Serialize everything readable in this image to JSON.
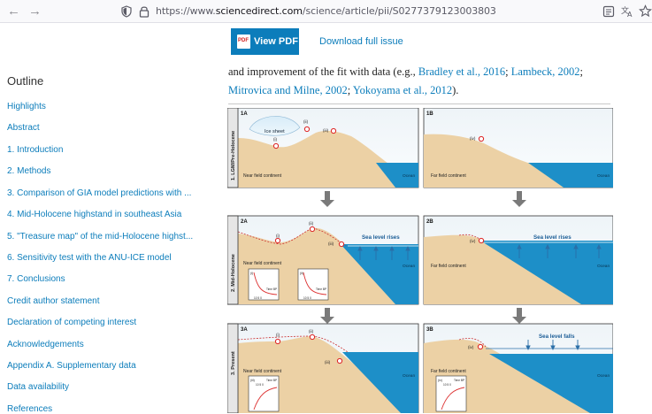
{
  "browser": {
    "url_prefix": "https://www.",
    "url_host": "sciencedirect.com",
    "url_path": "/science/article/pii/S0277379123003803"
  },
  "toolbar": {
    "view_pdf": "View PDF",
    "download": "Download full issue"
  },
  "outline": {
    "title": "Outline",
    "items": [
      "Highlights",
      "Abstract",
      "1. Introduction",
      "2. Methods",
      "3. Comparison of GIA model predictions with ...",
      "4. Mid-Holocene highstand in southeast Asia",
      "5. \"Treasure map\" of the mid-Holocene highst...",
      "6. Sensitivity test with the ANU-ICE model",
      "7. Conclusions",
      "Credit author statement",
      "Declaration of competing interest",
      "Acknowledgements",
      "Appendix A. Supplementary data",
      "Data availability",
      "References"
    ]
  },
  "article": {
    "t1": "and improvement of the fit with data (e.g., ",
    "r1": "Bradley et al., 2016",
    "s1": "; ",
    "r2": "Lambeck, 2002",
    "s2": ";",
    "r3": "Mitrovica and Milne, 2002",
    "s3": "; ",
    "r4": "Yokoyama et al., 2012",
    "t2": ")."
  },
  "figure": {
    "panel_ids": [
      "1A",
      "1B",
      "2A",
      "2B",
      "3A",
      "3B"
    ],
    "row_labels": [
      "1. LGM/Pre-Holocene",
      "2. Mid-Holocene",
      "3. Present"
    ],
    "ice_sheet": "Ice sheet",
    "markers": [
      "(i)",
      "(ii)",
      "(iii)",
      "(iv)"
    ],
    "near_field": "Near field continent",
    "far_field": "Far field continent",
    "ocean": "Ocean",
    "sea_level_rises": "Sea level rises",
    "sea_level_falls": "Sea level falls",
    "time_bp": "Time BP",
    "ka": "(ka)",
    "ticks": "10  5  0"
  }
}
